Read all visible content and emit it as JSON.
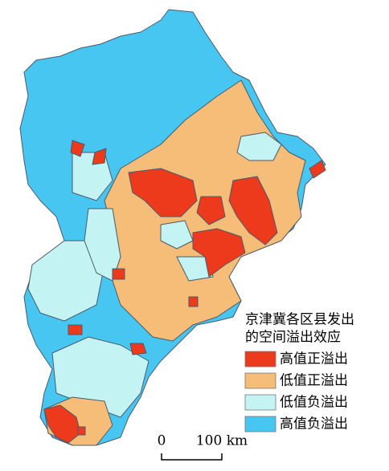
{
  "legend": {
    "title_lines": [
      "京津冀各区县发出",
      "的空间溢出效应"
    ],
    "items": [
      {
        "label": "高值正溢出",
        "color": "#ee3a1c"
      },
      {
        "label": "低值正溢出",
        "color": "#f6bd78"
      },
      {
        "label": "低值负溢出",
        "color": "#c4f3f3"
      },
      {
        "label": "高值负溢出",
        "color": "#48c6f2"
      }
    ]
  },
  "scale_bar": {
    "labels": [
      "0",
      "100 km"
    ]
  }
}
